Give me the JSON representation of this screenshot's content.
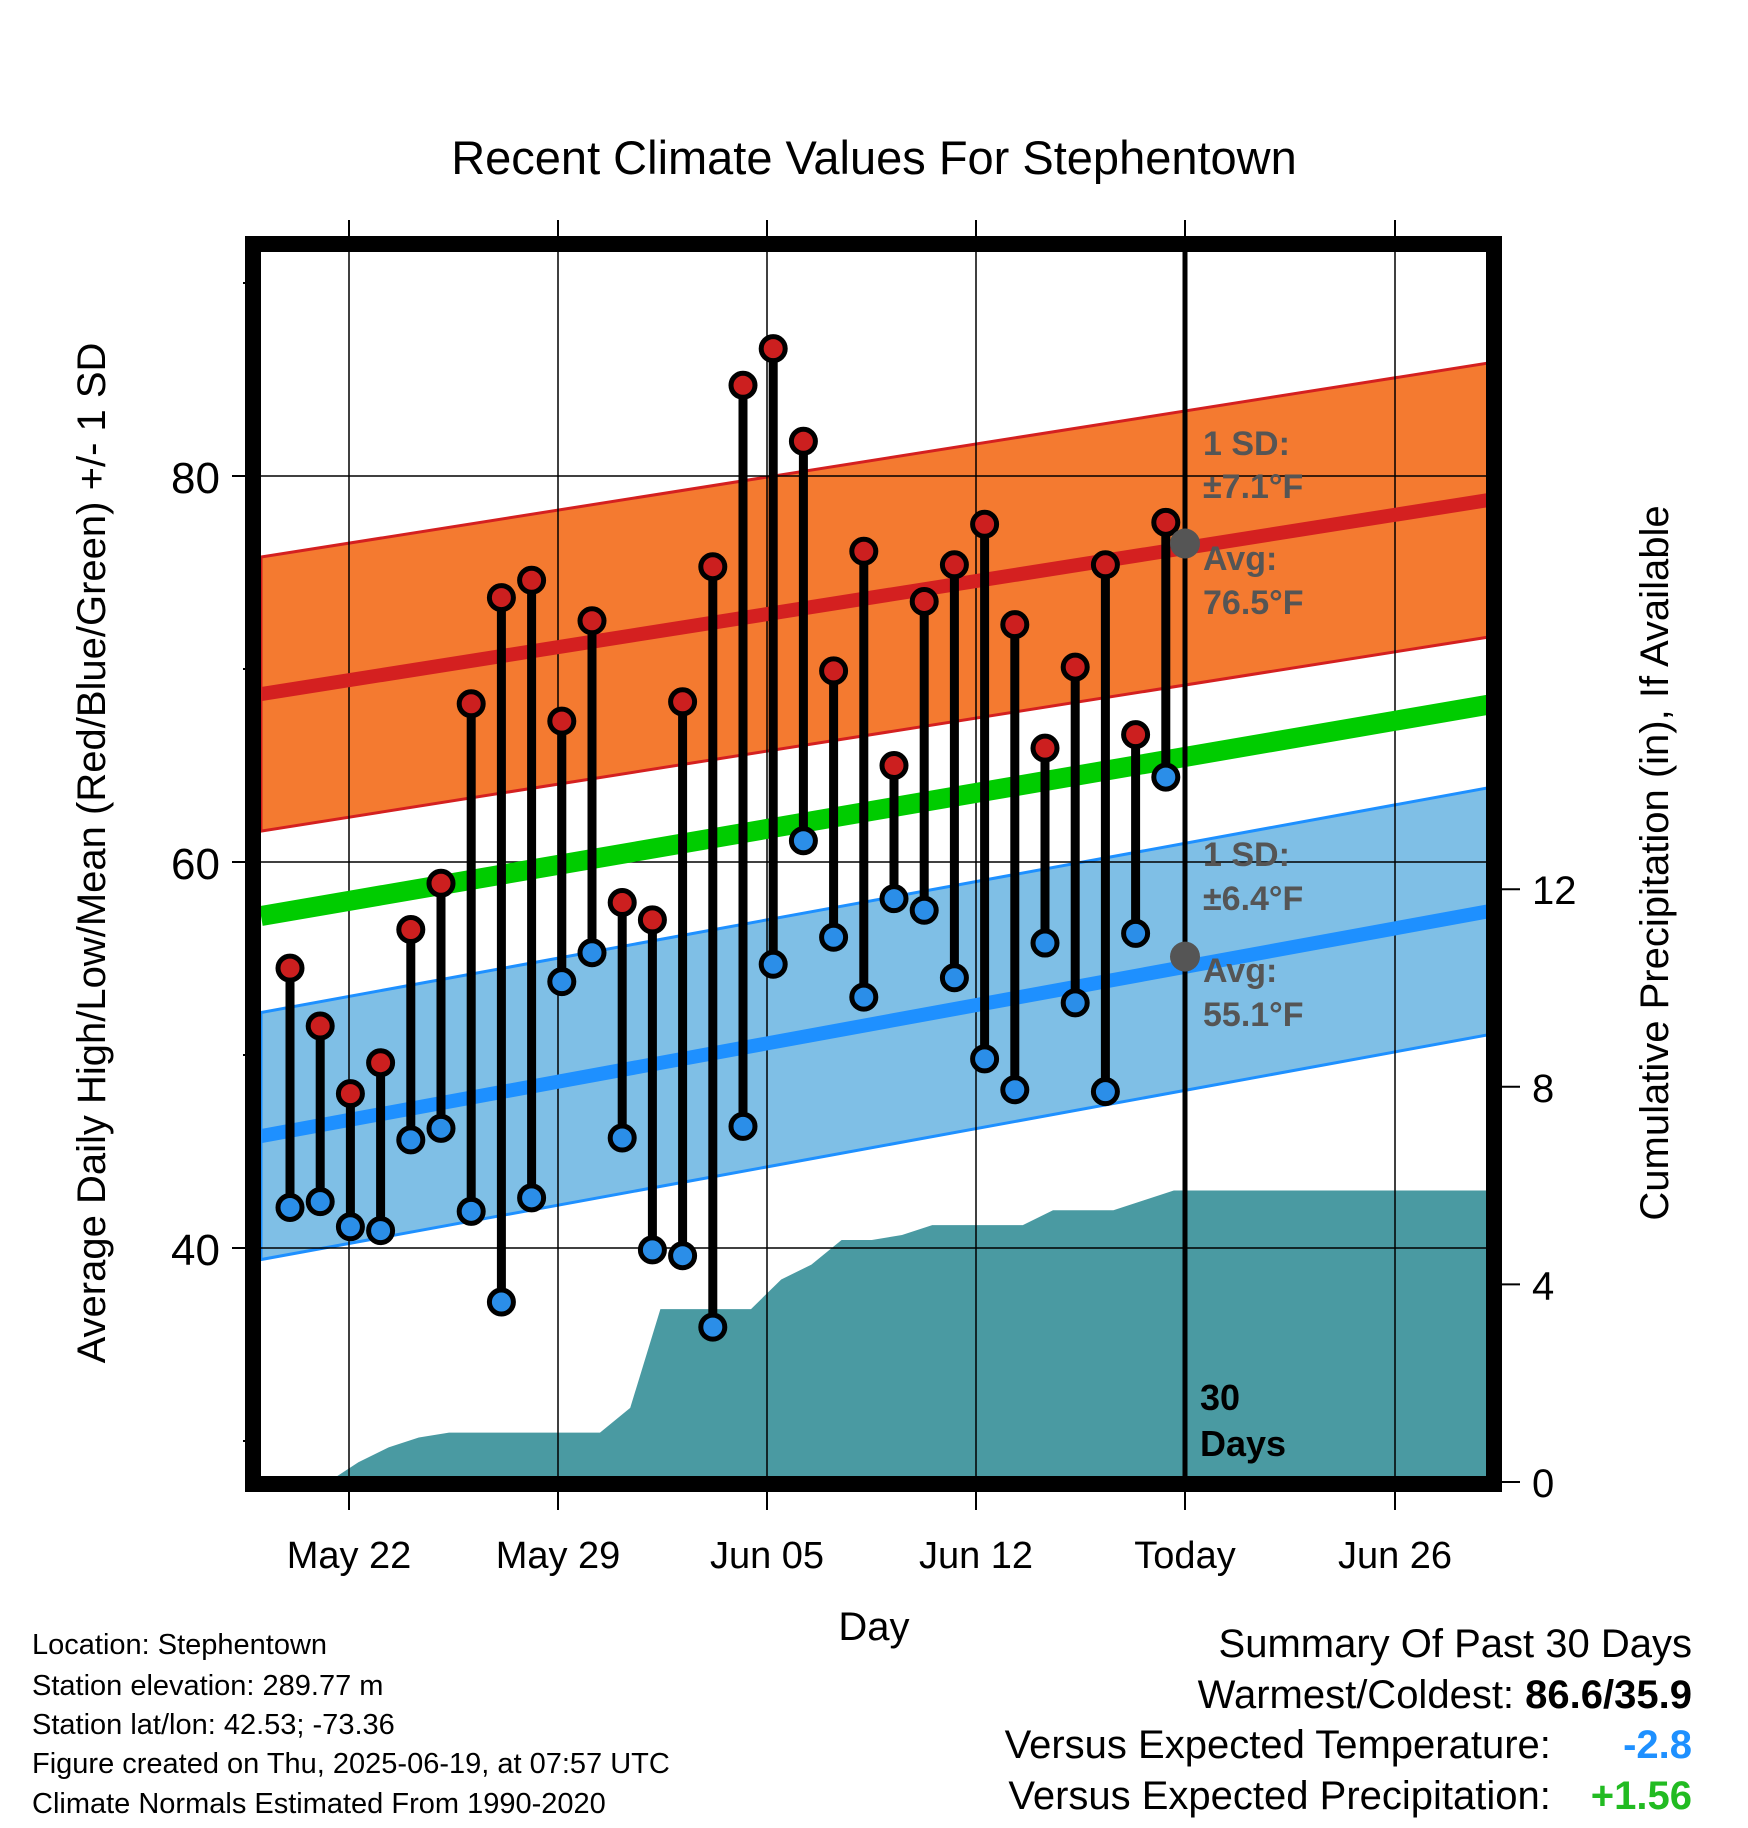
{
  "chart_data": {
    "type": "line",
    "title": "Recent Climate Values For Stephentown",
    "xlabel": "Day",
    "ylabel_left": "Average Daily High/Low/Mean (Red/Blue/Green) +/- 1 SD",
    "ylabel_right": "Cumulative Precipitation (in), If Available",
    "x_ticks": [
      "May 22",
      "May 29",
      "Jun 05",
      "Jun 12",
      "Today",
      "Jun 26"
    ],
    "y_left_ticks": [
      "40",
      "60",
      "80"
    ],
    "y_right_ticks": [
      "0",
      "4",
      "8",
      "12"
    ],
    "y_left_range": [
      28.3,
      91.8
    ],
    "y_right_range": [
      0,
      24.9
    ],
    "days": [
      "May 20",
      "May 21",
      "May 22",
      "May 23",
      "May 24",
      "May 25",
      "May 26",
      "May 27",
      "May 28",
      "May 29",
      "May 30",
      "May 31",
      "Jun 01",
      "Jun 02",
      "Jun 03",
      "Jun 04",
      "Jun 05",
      "Jun 06",
      "Jun 07",
      "Jun 08",
      "Jun 09",
      "Jun 10",
      "Jun 11",
      "Jun 12",
      "Jun 13",
      "Jun 14",
      "Jun 15",
      "Jun 16",
      "Jun 17",
      "Jun 18"
    ],
    "highs": [
      54.5,
      51.5,
      48.0,
      49.6,
      56.5,
      58.9,
      68.2,
      73.7,
      74.6,
      67.3,
      72.5,
      57.9,
      57.0,
      68.3,
      75.3,
      84.7,
      86.6,
      81.8,
      69.9,
      76.1,
      65.0,
      73.5,
      75.4,
      77.5,
      72.3,
      65.9,
      70.1,
      75.4,
      66.6,
      77.6
    ],
    "lows": [
      42.1,
      42.4,
      41.1,
      40.9,
      45.6,
      46.2,
      41.9,
      37.2,
      42.6,
      53.8,
      55.3,
      45.7,
      39.9,
      39.6,
      35.9,
      46.3,
      54.7,
      61.1,
      56.1,
      53.0,
      58.1,
      57.5,
      54.0,
      49.8,
      48.2,
      55.8,
      52.7,
      48.1,
      56.3,
      64.4
    ],
    "normal_high": {
      "start": 68.7,
      "today": 76.5,
      "end": 78.8
    },
    "normal_low": {
      "start": 45.8,
      "today": 55.1,
      "end": 57.5
    },
    "normal_mean": {
      "start": 57.2,
      "end": 68.2
    },
    "high_sd": 7.1,
    "low_sd": 6.4,
    "precip_cumulative": [
      0.0,
      0.0,
      0.4,
      0.7,
      0.9,
      1.0,
      1.0,
      1.0,
      1.0,
      1.0,
      1.0,
      1.5,
      3.5,
      3.5,
      3.5,
      3.5,
      4.1,
      4.4,
      4.9,
      4.9,
      5.0,
      5.2,
      5.2,
      5.2,
      5.2,
      5.5,
      5.5,
      5.5,
      5.7,
      5.9
    ],
    "annotations": {
      "high_sd_label": "1 SD:",
      "high_sd_value": "±7.1°F",
      "high_avg_label": "Avg:",
      "high_avg_value": "76.5°F",
      "low_sd_label": "1 SD:",
      "low_sd_value": "±6.4°F",
      "low_avg_label": "Avg:",
      "low_avg_value": "55.1°F",
      "period_line1": "30",
      "period_line2": "Days"
    },
    "colors": {
      "high_band": "#f47a30",
      "high_line": "#d42020",
      "low_band": "#7fbfe6",
      "low_line": "#1e90ff",
      "mean_line": "#00cc00",
      "precip": "#4a9aa2",
      "high_dot": "#cc1f1f",
      "low_dot": "#2b8ee8",
      "annotation": "#555555"
    },
    "grid": true,
    "legend": "none"
  },
  "footer": {
    "location": "Location: Stephentown",
    "elevation": "Station elevation: 289.77 m",
    "latlon": "Station lat/lon: 42.53; -73.36",
    "created": "Figure created on Thu, 2025-06-19, at 07:57 UTC",
    "normals": "Climate Normals Estimated From 1990-2020"
  },
  "summary": {
    "title": "Summary Of Past 30 Days",
    "warmest_label": "Warmest/Coldest:",
    "warmest_value": "86.6/35.9",
    "temp_label": "Versus Expected Temperature:",
    "temp_value": "-2.8",
    "temp_color": "#1e90ff",
    "precip_label": "Versus Expected Precipitation:",
    "precip_value": "+1.56",
    "precip_color": "#22bb22"
  }
}
